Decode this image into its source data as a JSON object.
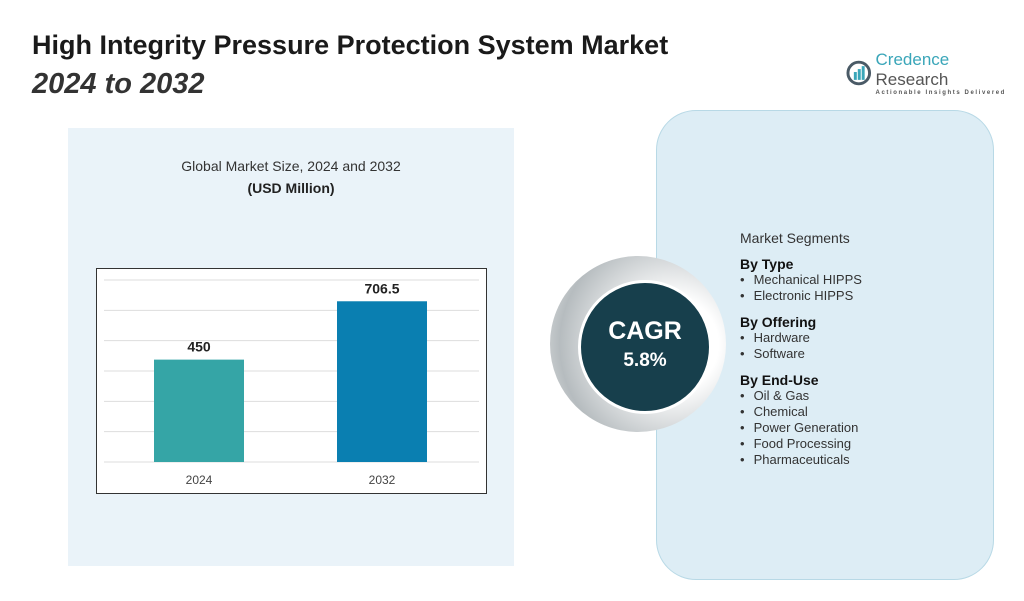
{
  "header": {
    "title": "High Integrity Pressure Protection System Market",
    "subtitle": "2024 to 2032"
  },
  "logo": {
    "name_part1": "Credence",
    "name_part2": "Research",
    "tagline": "Actionable Insights Delivered"
  },
  "chart_data": {
    "type": "bar",
    "title": "Global Market Size, 2024 and 2032",
    "subtitle": "(USD Million)",
    "categories": [
      "2024",
      "2032"
    ],
    "values": [
      450,
      706.5
    ],
    "value_labels": [
      "450",
      "706.5"
    ],
    "colors": [
      "#35a5a6",
      "#0a7fb1"
    ],
    "ylim": [
      0,
      800
    ],
    "grid": true,
    "xlabel": "",
    "ylabel": ""
  },
  "cagr": {
    "label": "CAGR",
    "value": "5.8%"
  },
  "segments": {
    "heading": "Market Segments",
    "groups": [
      {
        "title": "By Type",
        "items": [
          "Mechanical HIPPS",
          "Electronic HIPPS"
        ]
      },
      {
        "title": "By Offering",
        "items": [
          "Hardware",
          "Software"
        ]
      },
      {
        "title": "By End-Use",
        "items": [
          "Oil & Gas",
          "Chemical",
          "Power Generation",
          "Food Processing",
          "Pharmaceuticals"
        ]
      }
    ]
  }
}
